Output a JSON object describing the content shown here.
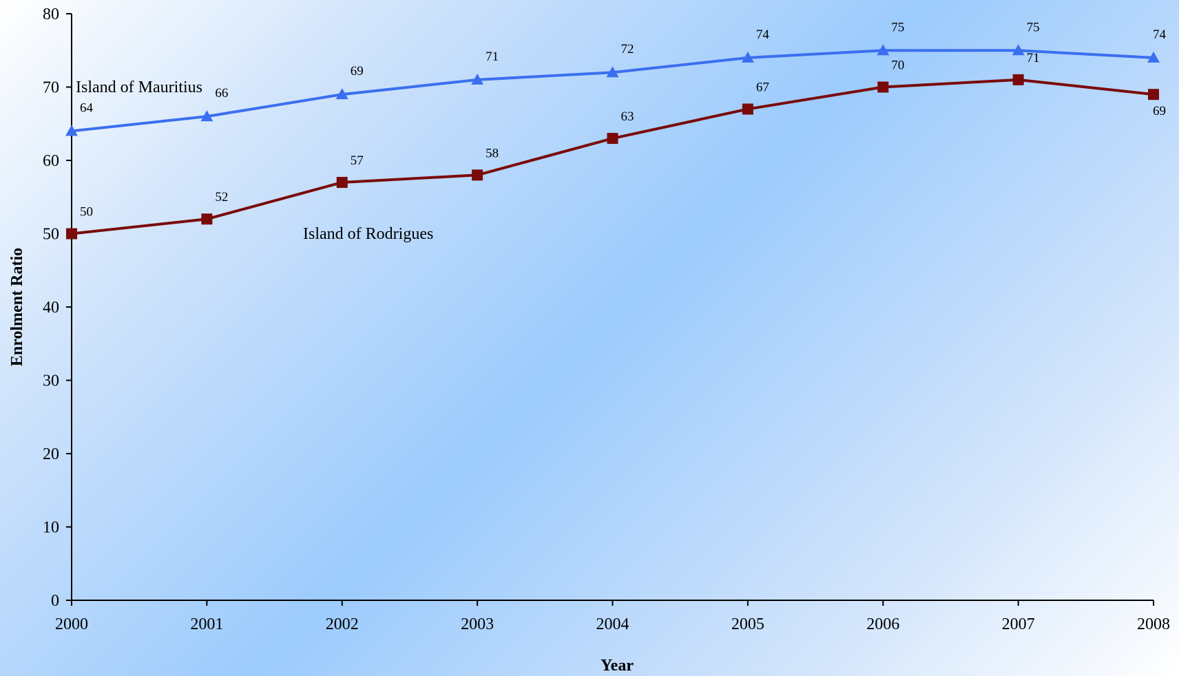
{
  "chart_data": {
    "type": "line",
    "title": "",
    "xlabel": "Year",
    "ylabel": "Enrolment Ratio",
    "categories": [
      "2000",
      "2001",
      "2002",
      "2003",
      "2004",
      "2005",
      "2006",
      "2007",
      "2008"
    ],
    "ylim": [
      0,
      80
    ],
    "yticks": [
      "0",
      "10",
      "20",
      "30",
      "40",
      "50",
      "60",
      "70",
      "80"
    ],
    "grid": false,
    "legend": "none",
    "series": [
      {
        "name": "Island of Mauritius",
        "values": [
          64,
          66,
          69,
          71,
          72,
          74,
          75,
          75,
          74
        ],
        "labels": [
          "64",
          "66",
          "69",
          "71",
          "72",
          "74",
          "75",
          "75",
          "74"
        ],
        "color": "#3b6fef",
        "marker": "triangle"
      },
      {
        "name": "Island of Rodrigues",
        "values": [
          50,
          52,
          57,
          58,
          63,
          67,
          70,
          71,
          69
        ],
        "labels": [
          "50",
          "52",
          "57",
          "58",
          "63",
          "67",
          "70",
          "71",
          "69"
        ],
        "color": "#7a0a0a",
        "marker": "square"
      }
    ]
  }
}
